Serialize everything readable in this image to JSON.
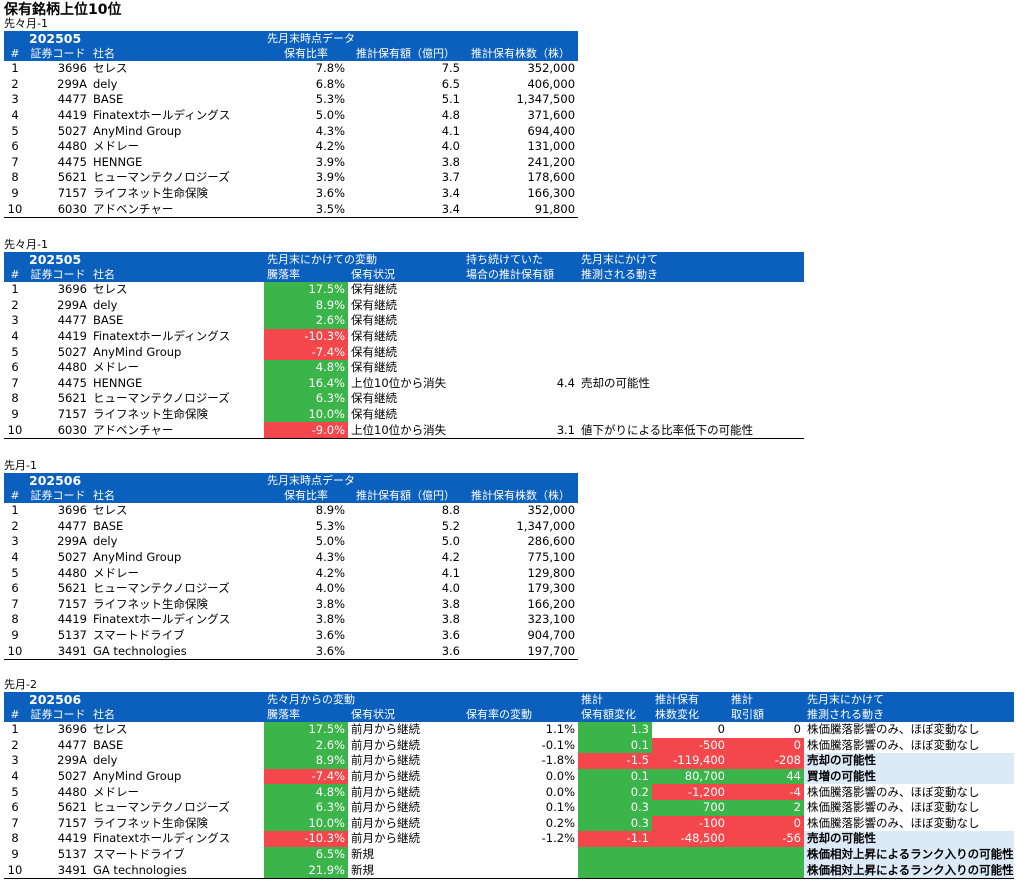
{
  "title": "保有銘柄上位10位",
  "sections": [
    {
      "label": "先々月-1",
      "ym": "202505",
      "group_header": "先月末時点データ",
      "headers": [
        "#",
        "証券コード",
        "社名",
        "保有比率",
        "推計保有額（億円）",
        "推計保有株数（株）"
      ],
      "rows": [
        [
          "1",
          "3696",
          "セレス",
          "7.8%",
          "7.5",
          "352,000"
        ],
        [
          "2",
          "299A",
          "dely",
          "6.8%",
          "6.5",
          "406,000"
        ],
        [
          "3",
          "4477",
          "BASE",
          "5.3%",
          "5.1",
          "1,347,500"
        ],
        [
          "4",
          "4419",
          "Finatextホールディングス",
          "5.0%",
          "4.8",
          "371,600"
        ],
        [
          "5",
          "5027",
          "AnyMind Group",
          "4.3%",
          "4.1",
          "694,400"
        ],
        [
          "6",
          "4480",
          "メドレー",
          "4.2%",
          "4.0",
          "131,000"
        ],
        [
          "7",
          "4475",
          "HENNGE",
          "3.9%",
          "3.8",
          "241,200"
        ],
        [
          "8",
          "5621",
          "ヒューマンテクノロジーズ",
          "3.9%",
          "3.7",
          "178,600"
        ],
        [
          "9",
          "7157",
          "ライフネット生命保険",
          "3.6%",
          "3.4",
          "166,300"
        ],
        [
          "10",
          "6030",
          "アドベンチャー",
          "3.5%",
          "3.4",
          "91,800"
        ]
      ]
    },
    {
      "label": "先々月-1",
      "ym": "202505",
      "group_header": "先月末にかけての変動",
      "group_header2": "持ち続けていた",
      "group_header3": "先月末にかけて",
      "headers": [
        "#",
        "証券コード",
        "社名",
        "騰落率",
        "保有状況",
        "場合の推計保有額",
        "推測される動き"
      ],
      "rows": [
        [
          "1",
          "3696",
          "セレス",
          "17.5%",
          "保有継続",
          "",
          ""
        ],
        [
          "2",
          "299A",
          "dely",
          "8.9%",
          "保有継続",
          "",
          ""
        ],
        [
          "3",
          "4477",
          "BASE",
          "2.6%",
          "保有継続",
          "",
          ""
        ],
        [
          "4",
          "4419",
          "Finatextホールディングス",
          "-10.3%",
          "保有継続",
          "",
          ""
        ],
        [
          "5",
          "5027",
          "AnyMind Group",
          "-7.4%",
          "保有継続",
          "",
          ""
        ],
        [
          "6",
          "4480",
          "メドレー",
          "4.8%",
          "保有継続",
          "",
          ""
        ],
        [
          "7",
          "4475",
          "HENNGE",
          "16.4%",
          "上位10位から消失",
          "4.4",
          "売却の可能性"
        ],
        [
          "8",
          "5621",
          "ヒューマンテクノロジーズ",
          "6.3%",
          "保有継続",
          "",
          ""
        ],
        [
          "9",
          "7157",
          "ライフネット生命保険",
          "10.0%",
          "保有継続",
          "",
          ""
        ],
        [
          "10",
          "6030",
          "アドベンチャー",
          "-9.0%",
          "上位10位から消失",
          "3.1",
          "値下がりによる比率低下の可能性"
        ]
      ],
      "signs": [
        "pos",
        "pos",
        "pos",
        "neg",
        "neg",
        "pos",
        "pos",
        "pos",
        "pos",
        "neg"
      ]
    },
    {
      "label": "先月-1",
      "ym": "202506",
      "group_header": "先月末時点データ",
      "headers": [
        "#",
        "証券コード",
        "社名",
        "保有比率",
        "推計保有額（億円）",
        "推計保有株数（株）"
      ],
      "rows": [
        [
          "1",
          "3696",
          "セレス",
          "8.9%",
          "8.8",
          "352,000"
        ],
        [
          "2",
          "4477",
          "BASE",
          "5.3%",
          "5.2",
          "1,347,000"
        ],
        [
          "3",
          "299A",
          "dely",
          "5.0%",
          "5.0",
          "286,600"
        ],
        [
          "4",
          "5027",
          "AnyMind Group",
          "4.3%",
          "4.2",
          "775,100"
        ],
        [
          "5",
          "4480",
          "メドレー",
          "4.2%",
          "4.1",
          "129,800"
        ],
        [
          "6",
          "5621",
          "ヒューマンテクノロジーズ",
          "4.0%",
          "4.0",
          "179,300"
        ],
        [
          "7",
          "7157",
          "ライフネット生命保険",
          "3.8%",
          "3.8",
          "166,200"
        ],
        [
          "8",
          "4419",
          "Finatextホールディングス",
          "3.8%",
          "3.8",
          "323,100"
        ],
        [
          "9",
          "5137",
          "スマートドライブ",
          "3.6%",
          "3.6",
          "904,700"
        ],
        [
          "10",
          "3491",
          "GA technologies",
          "3.6%",
          "3.6",
          "197,700"
        ]
      ]
    },
    {
      "label": "先月-2",
      "ym": "202506",
      "group_header": "先々月からの変動",
      "group_header2": "推計",
      "group_header3": "推計保有",
      "group_header4": "推計",
      "group_header5": "先月末にかけて",
      "headers": [
        "#",
        "証券コード",
        "社名",
        "騰落率",
        "保有状況",
        "保有率の変動",
        "保有額変化",
        "株数変化",
        "取引額",
        "推測される動き"
      ],
      "rows": [
        [
          "1",
          "3696",
          "セレス",
          "17.5%",
          "前月から継続",
          "1.1%",
          "1.3",
          "0",
          "0",
          "株価騰落影響のみ、ほぼ変動なし"
        ],
        [
          "2",
          "4477",
          "BASE",
          "2.6%",
          "前月から継続",
          "-0.1%",
          "0.1",
          "-500",
          "0",
          "株価騰落影響のみ、ほぼ変動なし"
        ],
        [
          "3",
          "299A",
          "dely",
          "8.9%",
          "前月から継続",
          "-1.8%",
          "-1.5",
          "-119,400",
          "-208",
          "売却の可能性"
        ],
        [
          "4",
          "5027",
          "AnyMind Group",
          "-7.4%",
          "前月から継続",
          "0.0%",
          "0.1",
          "80,700",
          "44",
          "買増の可能性"
        ],
        [
          "5",
          "4480",
          "メドレー",
          "4.8%",
          "前月から継続",
          "0.0%",
          "0.2",
          "-1,200",
          "-4",
          "株価騰落影響のみ、ほぼ変動なし"
        ],
        [
          "6",
          "5621",
          "ヒューマンテクノロジーズ",
          "6.3%",
          "前月から継続",
          "0.1%",
          "0.3",
          "700",
          "2",
          "株価騰落影響のみ、ほぼ変動なし"
        ],
        [
          "7",
          "7157",
          "ライフネット生命保険",
          "10.0%",
          "前月から継続",
          "0.2%",
          "0.3",
          "-100",
          "0",
          "株価騰落影響のみ、ほぼ変動なし"
        ],
        [
          "8",
          "4419",
          "Finatextホールディングス",
          "-10.3%",
          "前月から継続",
          "-1.2%",
          "-1.1",
          "-48,500",
          "-56",
          "売却の可能性"
        ],
        [
          "9",
          "5137",
          "スマートドライブ",
          "6.5%",
          "新規",
          "",
          "",
          "",
          "",
          "株価相対上昇によるランク入りの可能性"
        ],
        [
          "10",
          "3491",
          "GA technologies",
          "21.9%",
          "新規",
          "",
          "",
          "",
          "",
          "株価相対上昇によるランク入りの可能性"
        ]
      ],
      "signs": [
        "pos",
        "pos",
        "pos",
        "neg",
        "pos",
        "pos",
        "pos",
        "neg",
        "pos",
        "pos"
      ],
      "amt_signs": [
        "pos",
        "pos",
        "neg",
        "pos",
        "pos",
        "pos",
        "pos",
        "neg",
        "pos",
        "pos"
      ],
      "cnt_signs": [
        "none",
        "neg",
        "neg",
        "pos",
        "neg",
        "pos",
        "neg",
        "neg",
        "pos",
        "pos"
      ],
      "trade_signs": [
        "none",
        "neg",
        "neg",
        "pos",
        "neg",
        "pos",
        "neg",
        "neg",
        "pos",
        "pos"
      ],
      "highlight": [
        "",
        "",
        "hl",
        "hl",
        "",
        "",
        "",
        "hl",
        "hl",
        "hl"
      ],
      "bold_note": [
        false,
        false,
        true,
        true,
        false,
        false,
        false,
        true,
        true,
        true
      ]
    }
  ]
}
